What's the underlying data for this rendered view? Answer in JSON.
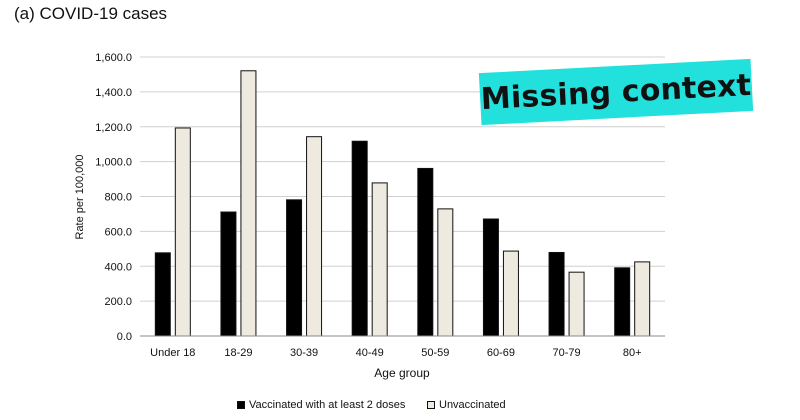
{
  "figure": {
    "title": "(a) COVID-19 cases"
  },
  "stamp": {
    "text": "Missing context",
    "color": "#22e0dc"
  },
  "chart_data": {
    "type": "bar",
    "xlabel": "Age group",
    "ylabel": "Rate per 100,000",
    "ylim": [
      0,
      1600
    ],
    "yticks": [
      "0.0",
      "200.0",
      "400.0",
      "600.0",
      "800.0",
      "1,000.0",
      "1,200.0",
      "1,400.0",
      "1,600.0"
    ],
    "grid": true,
    "legend_position": "bottom",
    "categories": [
      "Under 18",
      "18-29",
      "30-39",
      "40-49",
      "50-59",
      "60-69",
      "70-79",
      "80+"
    ],
    "series": [
      {
        "name": "Vaccinated with at least 2 doses",
        "color": "#000000",
        "values": [
          477,
          711,
          781,
          1117,
          961,
          671,
          479,
          391
        ]
      },
      {
        "name": "Unvaccinated",
        "color": "#eeeae0",
        "values": [
          1193,
          1521,
          1143,
          878,
          729,
          487,
          366,
          425
        ]
      }
    ]
  }
}
